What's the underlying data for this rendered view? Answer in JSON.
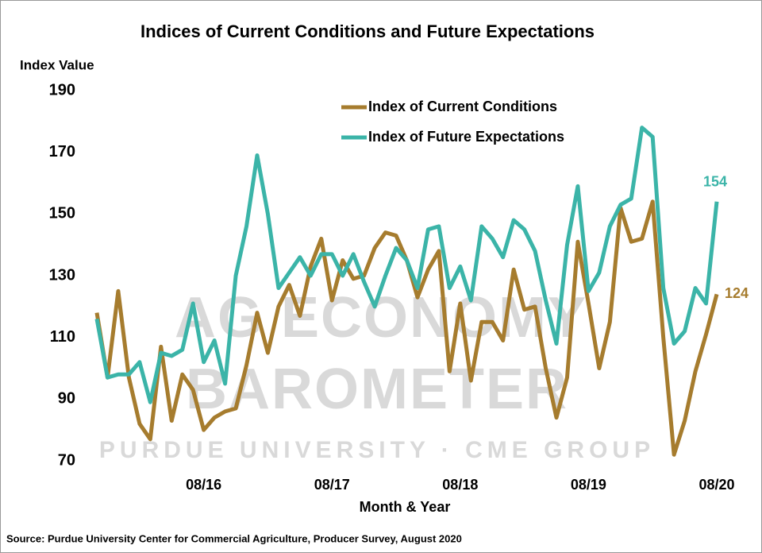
{
  "chart_data": {
    "type": "line",
    "title": "Indices of Current Conditions and Future Expectations",
    "y_label": "Index Value",
    "x_label": "Month & Year",
    "source": "Source: Purdue University Center for Commercial Agriculture, Producer Survey, August 2020",
    "watermark": [
      "AG ECONOMY",
      "BAROMETER",
      "PURDUE UNIVERSITY · CME GROUP"
    ],
    "categories": [
      null,
      null,
      null,
      null,
      null,
      null,
      null,
      null,
      null,
      null,
      "08/16",
      null,
      null,
      null,
      null,
      null,
      null,
      null,
      null,
      null,
      null,
      null,
      "08/17",
      null,
      null,
      null,
      null,
      null,
      null,
      null,
      null,
      null,
      null,
      null,
      "08/18",
      null,
      null,
      null,
      null,
      null,
      null,
      null,
      null,
      null,
      null,
      null,
      "08/19",
      null,
      null,
      null,
      null,
      null,
      null,
      null,
      null,
      null,
      null,
      null,
      "08/20"
    ],
    "series": [
      {
        "name": "Index of Current Conditions",
        "color": "#a67c2e",
        "values": [
          118,
          97,
          125,
          97,
          82,
          77,
          107,
          83,
          98,
          93,
          80,
          84,
          86,
          87,
          101,
          118,
          105,
          120,
          127,
          117,
          133,
          142,
          122,
          135,
          129,
          130,
          139,
          144,
          143,
          135,
          123,
          132,
          138,
          99,
          121,
          96,
          115,
          115,
          109,
          132,
          119,
          120,
          100,
          84,
          97,
          141,
          121,
          100,
          115,
          152,
          141,
          142,
          154,
          110,
          72,
          83,
          99,
          111,
          124
        ]
      },
      {
        "name": "Index of Future Expectations",
        "color": "#3bb4a8",
        "values": [
          116,
          97,
          98,
          98,
          102,
          89,
          105,
          104,
          106,
          121,
          102,
          109,
          95,
          130,
          146,
          169,
          150,
          126,
          131,
          136,
          130,
          137,
          137,
          130,
          137,
          128,
          120,
          130,
          139,
          135,
          126,
          145,
          146,
          126,
          133,
          122,
          146,
          142,
          136,
          148,
          145,
          138,
          122,
          108,
          140,
          159,
          125,
          131,
          146,
          153,
          155,
          178,
          175,
          126,
          108,
          112,
          126,
          121,
          154
        ]
      }
    ],
    "ylim": [
      70,
      190
    ],
    "yticks": [
      70,
      90,
      110,
      130,
      150,
      170,
      190
    ],
    "grid": false,
    "label_last": true
  }
}
